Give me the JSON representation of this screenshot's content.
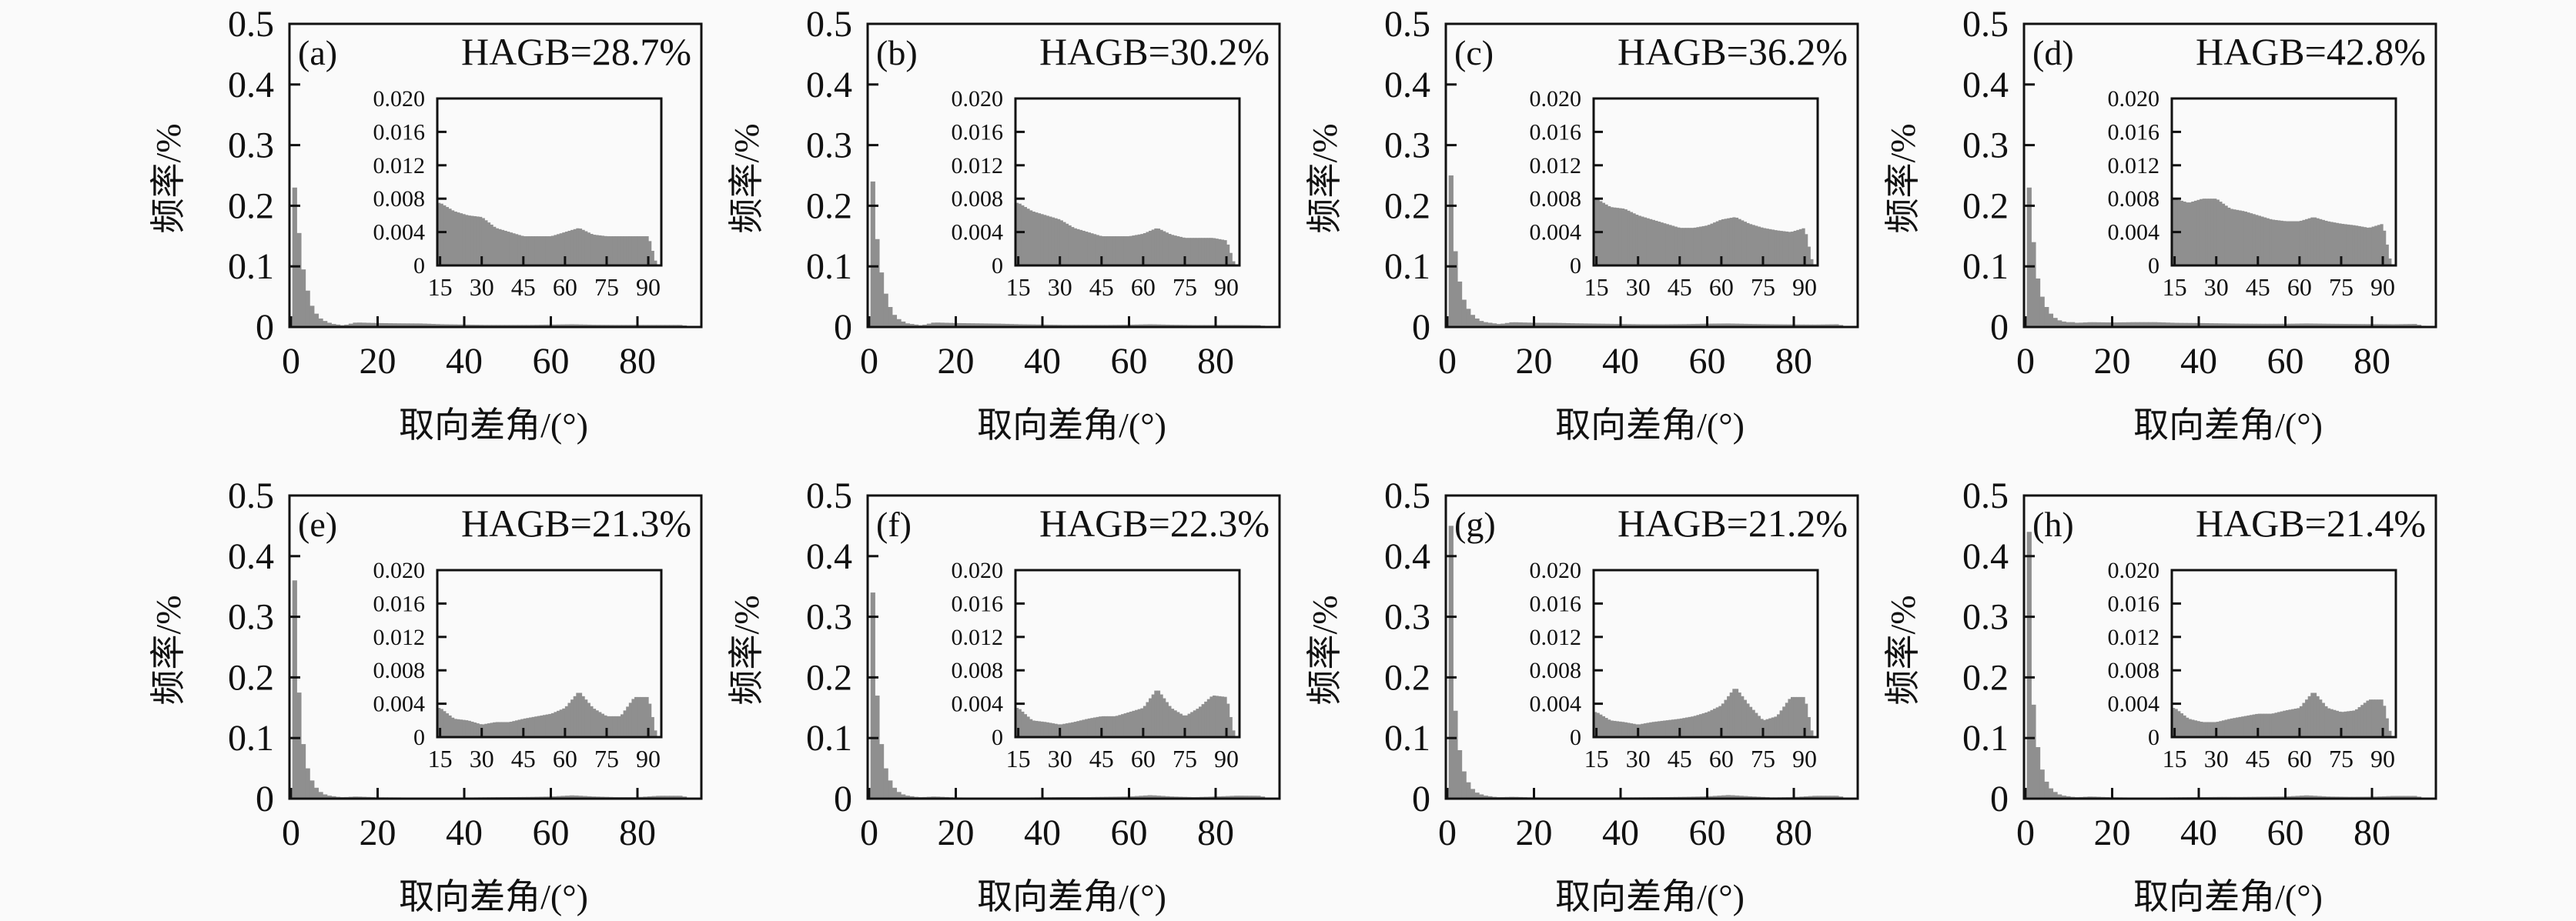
{
  "colors": {
    "bar_fill": "#8f8f8f",
    "axis": "#111111",
    "background": "#fafafa"
  },
  "chart_data": [
    {
      "type": "bar",
      "panel": "(a)",
      "hagb": "HAGB=28.7%",
      "ylabel": "频率/%",
      "xlabel": "取向差角/(°)",
      "xlim": [
        0,
        94
      ],
      "ylim": [
        0,
        0.5
      ],
      "x_ticks": [
        "0",
        "20",
        "40",
        "60",
        "80"
      ],
      "y_ticks": [
        "0",
        "0.1",
        "0.2",
        "0.3",
        "0.4",
        "0.5"
      ],
      "main_bins": [
        0.23,
        0.155,
        0.095,
        0.06,
        0.035,
        0.022,
        0.014,
        0.01,
        0.007,
        0.005,
        0.004,
        0.003
      ],
      "inset": {
        "xlim": [
          14,
          94.7
        ],
        "ylim": [
          0,
          0.02
        ],
        "x_ticks": [
          "15",
          "30",
          "45",
          "60",
          "75",
          "90"
        ],
        "y_ticks": [
          "0",
          "0.004",
          "0.008",
          "0.012",
          "0.016",
          "0.020"
        ],
        "x": [
          15,
          20,
          25,
          30,
          35,
          40,
          45,
          50,
          55,
          60,
          65,
          70,
          75,
          80,
          85,
          90,
          93
        ],
        "y": [
          0.0075,
          0.0065,
          0.006,
          0.0058,
          0.0045,
          0.004,
          0.0035,
          0.0035,
          0.0035,
          0.004,
          0.0045,
          0.0037,
          0.0035,
          0.0035,
          0.0035,
          0.0035,
          0
        ]
      }
    },
    {
      "type": "bar",
      "panel": "(b)",
      "hagb": "HAGB=30.2%",
      "ylabel": "频率/%",
      "xlabel": "取向差角/(°)",
      "xlim": [
        0,
        94
      ],
      "ylim": [
        0,
        0.5
      ],
      "x_ticks": [
        "0",
        "20",
        "40",
        "60",
        "80"
      ],
      "y_ticks": [
        "0",
        "0.1",
        "0.2",
        "0.3",
        "0.4",
        "0.5"
      ],
      "main_bins": [
        0.24,
        0.145,
        0.09,
        0.055,
        0.033,
        0.02,
        0.013,
        0.009,
        0.006,
        0.005,
        0.004,
        0.003
      ],
      "inset": {
        "xlim": [
          14,
          94.7
        ],
        "ylim": [
          0,
          0.02
        ],
        "x_ticks": [
          "15",
          "30",
          "45",
          "60",
          "75",
          "90"
        ],
        "y_ticks": [
          "0",
          "0.004",
          "0.008",
          "0.012",
          "0.016",
          "0.020"
        ],
        "x": [
          15,
          20,
          25,
          30,
          35,
          40,
          45,
          50,
          55,
          60,
          65,
          70,
          75,
          80,
          85,
          90,
          93
        ],
        "y": [
          0.0075,
          0.0065,
          0.006,
          0.0055,
          0.0045,
          0.004,
          0.0035,
          0.0035,
          0.0035,
          0.0038,
          0.0045,
          0.0037,
          0.0033,
          0.0033,
          0.0033,
          0.003,
          0
        ]
      }
    },
    {
      "type": "bar",
      "panel": "(c)",
      "hagb": "HAGB=36.2%",
      "ylabel": "频率/%",
      "xlabel": "取向差角/(°)",
      "xlim": [
        0,
        94
      ],
      "ylim": [
        0,
        0.5
      ],
      "x_ticks": [
        "0",
        "20",
        "40",
        "60",
        "80"
      ],
      "y_ticks": [
        "0",
        "0.1",
        "0.2",
        "0.3",
        "0.4",
        "0.5"
      ],
      "main_bins": [
        0.25,
        0.125,
        0.075,
        0.045,
        0.03,
        0.02,
        0.014,
        0.01,
        0.008,
        0.007,
        0.006,
        0.005
      ],
      "inset": {
        "xlim": [
          14,
          94.7
        ],
        "ylim": [
          0,
          0.02
        ],
        "x_ticks": [
          "15",
          "30",
          "45",
          "60",
          "75",
          "90"
        ],
        "y_ticks": [
          "0",
          "0.004",
          "0.008",
          "0.012",
          "0.016",
          "0.020"
        ],
        "x": [
          15,
          20,
          25,
          30,
          35,
          40,
          45,
          50,
          55,
          60,
          65,
          70,
          75,
          80,
          85,
          90,
          93
        ],
        "y": [
          0.008,
          0.007,
          0.0068,
          0.006,
          0.0055,
          0.005,
          0.0045,
          0.0045,
          0.0048,
          0.0055,
          0.0058,
          0.005,
          0.0045,
          0.0042,
          0.004,
          0.0045,
          0
        ]
      }
    },
    {
      "type": "bar",
      "panel": "(d)",
      "hagb": "HAGB=42.8%",
      "ylabel": "频率/%",
      "xlabel": "取向差角/(°)",
      "xlim": [
        0,
        94
      ],
      "ylim": [
        0,
        0.5
      ],
      "x_ticks": [
        "0",
        "20",
        "40",
        "60",
        "80"
      ],
      "y_ticks": [
        "0",
        "0.1",
        "0.2",
        "0.3",
        "0.4",
        "0.5"
      ],
      "main_bins": [
        0.23,
        0.14,
        0.08,
        0.05,
        0.033,
        0.022,
        0.015,
        0.011,
        0.009,
        0.008,
        0.008,
        0.007
      ],
      "inset": {
        "xlim": [
          14,
          94.7
        ],
        "ylim": [
          0,
          0.02
        ],
        "x_ticks": [
          "15",
          "30",
          "45",
          "60",
          "75",
          "90"
        ],
        "y_ticks": [
          "0",
          "0.004",
          "0.008",
          "0.012",
          "0.016",
          "0.020"
        ],
        "x": [
          15,
          20,
          25,
          30,
          35,
          40,
          45,
          50,
          55,
          60,
          65,
          70,
          75,
          80,
          85,
          90,
          93
        ],
        "y": [
          0.008,
          0.0075,
          0.008,
          0.008,
          0.0068,
          0.0065,
          0.006,
          0.0055,
          0.0053,
          0.0053,
          0.0058,
          0.0053,
          0.005,
          0.0048,
          0.0045,
          0.005,
          0
        ]
      }
    },
    {
      "type": "bar",
      "panel": "(e)",
      "hagb": "HAGB=21.3%",
      "ylabel": "频率/%",
      "xlabel": "取向差角/(°)",
      "xlim": [
        0,
        94
      ],
      "ylim": [
        0,
        0.5
      ],
      "x_ticks": [
        "0",
        "20",
        "40",
        "60",
        "80"
      ],
      "y_ticks": [
        "0",
        "0.1",
        "0.2",
        "0.3",
        "0.4",
        "0.5"
      ],
      "main_bins": [
        0.36,
        0.175,
        0.09,
        0.05,
        0.03,
        0.018,
        0.011,
        0.007,
        0.005,
        0.004,
        0.003,
        0.0025
      ],
      "inset": {
        "xlim": [
          14,
          94.7
        ],
        "ylim": [
          0,
          0.02
        ],
        "x_ticks": [
          "15",
          "30",
          "45",
          "60",
          "75",
          "90"
        ],
        "y_ticks": [
          "0",
          "0.004",
          "0.008",
          "0.012",
          "0.016",
          "0.020"
        ],
        "x": [
          15,
          20,
          25,
          30,
          35,
          40,
          45,
          50,
          55,
          60,
          65,
          70,
          75,
          80,
          85,
          90,
          93
        ],
        "y": [
          0.0035,
          0.0022,
          0.002,
          0.0015,
          0.0018,
          0.0018,
          0.0022,
          0.0025,
          0.0028,
          0.0035,
          0.0055,
          0.0035,
          0.0025,
          0.0025,
          0.0048,
          0.0048,
          0
        ]
      }
    },
    {
      "type": "bar",
      "panel": "(f)",
      "hagb": "HAGB=22.3%",
      "ylabel": "频率/%",
      "xlabel": "取向差角/(°)",
      "xlim": [
        0,
        94
      ],
      "ylim": [
        0,
        0.5
      ],
      "x_ticks": [
        "0",
        "20",
        "40",
        "60",
        "80"
      ],
      "y_ticks": [
        "0",
        "0.1",
        "0.2",
        "0.3",
        "0.4",
        "0.5"
      ],
      "main_bins": [
        0.34,
        0.17,
        0.09,
        0.05,
        0.03,
        0.018,
        0.011,
        0.007,
        0.005,
        0.004,
        0.003,
        0.0025
      ],
      "inset": {
        "xlim": [
          14,
          94.7
        ],
        "ylim": [
          0,
          0.02
        ],
        "x_ticks": [
          "15",
          "30",
          "45",
          "60",
          "75",
          "90"
        ],
        "y_ticks": [
          "0",
          "0.004",
          "0.008",
          "0.012",
          "0.016",
          "0.020"
        ],
        "x": [
          15,
          20,
          25,
          30,
          35,
          40,
          45,
          50,
          55,
          60,
          65,
          70,
          75,
          80,
          85,
          90,
          93
        ],
        "y": [
          0.0035,
          0.002,
          0.0018,
          0.0015,
          0.0018,
          0.0022,
          0.0025,
          0.0025,
          0.003,
          0.0035,
          0.0058,
          0.0035,
          0.0025,
          0.0035,
          0.005,
          0.0048,
          0
        ]
      }
    },
    {
      "type": "bar",
      "panel": "(g)",
      "hagb": "HAGB=21.2%",
      "ylabel": "频率/%",
      "xlabel": "取向差角/(°)",
      "xlim": [
        0,
        94
      ],
      "ylim": [
        0,
        0.5
      ],
      "x_ticks": [
        "0",
        "20",
        "40",
        "60",
        "80"
      ],
      "y_ticks": [
        "0",
        "0.1",
        "0.2",
        "0.3",
        "0.4",
        "0.5"
      ],
      "main_bins": [
        0.45,
        0.145,
        0.08,
        0.045,
        0.027,
        0.016,
        0.01,
        0.007,
        0.005,
        0.004,
        0.003,
        0.0025
      ],
      "inset": {
        "xlim": [
          14,
          94.7
        ],
        "ylim": [
          0,
          0.02
        ],
        "x_ticks": [
          "15",
          "30",
          "45",
          "60",
          "75",
          "90"
        ],
        "y_ticks": [
          "0",
          "0.004",
          "0.008",
          "0.012",
          "0.016",
          "0.020"
        ],
        "x": [
          15,
          20,
          25,
          30,
          35,
          40,
          45,
          50,
          55,
          60,
          65,
          70,
          75,
          80,
          85,
          90,
          93
        ],
        "y": [
          0.003,
          0.002,
          0.0018,
          0.0015,
          0.0018,
          0.002,
          0.0022,
          0.0025,
          0.003,
          0.0038,
          0.006,
          0.0038,
          0.002,
          0.0025,
          0.0048,
          0.0048,
          0
        ]
      }
    },
    {
      "type": "bar",
      "panel": "(h)",
      "hagb": "HAGB=21.4%",
      "ylabel": "频率/%",
      "xlabel": "取向差角/(°)",
      "xlim": [
        0,
        94
      ],
      "ylim": [
        0,
        0.5
      ],
      "x_ticks": [
        "0",
        "20",
        "40",
        "60",
        "80"
      ],
      "y_ticks": [
        "0",
        "0.1",
        "0.2",
        "0.3",
        "0.4",
        "0.5"
      ],
      "main_bins": [
        0.44,
        0.155,
        0.085,
        0.048,
        0.028,
        0.017,
        0.011,
        0.007,
        0.005,
        0.004,
        0.003,
        0.0025
      ],
      "inset": {
        "xlim": [
          14,
          94.7
        ],
        "ylim": [
          0,
          0.02
        ],
        "x_ticks": [
          "15",
          "30",
          "45",
          "60",
          "75",
          "90"
        ],
        "y_ticks": [
          "0",
          "0.004",
          "0.008",
          "0.012",
          "0.016",
          "0.020"
        ],
        "x": [
          15,
          20,
          25,
          30,
          35,
          40,
          45,
          50,
          55,
          60,
          65,
          70,
          75,
          80,
          85,
          90,
          93
        ],
        "y": [
          0.0035,
          0.0022,
          0.0018,
          0.0018,
          0.0022,
          0.0025,
          0.0028,
          0.0028,
          0.0032,
          0.0035,
          0.0055,
          0.0035,
          0.003,
          0.0032,
          0.0045,
          0.0045,
          0
        ]
      }
    }
  ]
}
